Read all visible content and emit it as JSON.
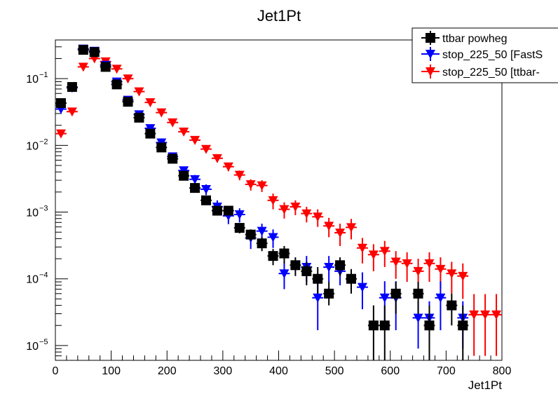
{
  "chart_data": {
    "type": "scatter",
    "title": "Jet1Pt",
    "xlabel": "Jet1Pt",
    "ylabel": "",
    "xlim": [
      0,
      800
    ],
    "ylim": [
      6e-06,
      0.38
    ],
    "yscale": "log",
    "grid": false,
    "legend_position": "top-right",
    "x_ticks": [
      0,
      100,
      200,
      300,
      400,
      500,
      600,
      700,
      800
    ],
    "x_tick_labels": [
      "0",
      "100",
      "200",
      "300",
      "400",
      "500",
      "600",
      "700",
      "800"
    ],
    "y_ticks": [
      1e-05,
      0.0001,
      0.001,
      0.01,
      0.1
    ],
    "y_tick_labels": [
      {
        "base": "10",
        "exp": "−5"
      },
      {
        "base": "10",
        "exp": "−4"
      },
      {
        "base": "10",
        "exp": "−3"
      },
      {
        "base": "10",
        "exp": "−2"
      },
      {
        "base": "10",
        "exp": "−1"
      }
    ],
    "series": [
      {
        "name": "ttbar powheg",
        "color": "#000000",
        "marker": "square",
        "points": [
          [
            10,
            0.043,
            0.002,
            0.002
          ],
          [
            30,
            0.075,
            0.003,
            0.003
          ],
          [
            50,
            0.27,
            0.005,
            0.005
          ],
          [
            70,
            0.25,
            0.005,
            0.005
          ],
          [
            90,
            0.15,
            0.004,
            0.004
          ],
          [
            110,
            0.082,
            0.003,
            0.003
          ],
          [
            130,
            0.045,
            0.002,
            0.002
          ],
          [
            150,
            0.026,
            0.0015,
            0.0015
          ],
          [
            170,
            0.015,
            0.001,
            0.001
          ],
          [
            190,
            0.0093,
            0.0007,
            0.0007
          ],
          [
            210,
            0.0063,
            0.0005,
            0.0005
          ],
          [
            230,
            0.0035,
            0.0004,
            0.0004
          ],
          [
            250,
            0.0023,
            0.0003,
            0.0003
          ],
          [
            270,
            0.0015,
            0.0002,
            0.0002
          ],
          [
            290,
            0.00105,
            0.00015,
            0.00015
          ],
          [
            310,
            0.00105,
            0.00015,
            0.00015
          ],
          [
            330,
            0.00058,
            0.0001,
            0.0001
          ],
          [
            350,
            0.00046,
            9e-05,
            9e-05
          ],
          [
            370,
            0.00034,
            8e-05,
            8e-05
          ],
          [
            390,
            0.00022,
            6e-05,
            6e-05
          ],
          [
            410,
            0.00024,
            7e-05,
            7e-05
          ],
          [
            430,
            0.00016,
            5e-05,
            5e-05
          ],
          [
            450,
            0.00013,
            5e-05,
            5e-05
          ],
          [
            470,
            0.0001,
            5e-05,
            4e-05
          ],
          [
            490,
            6e-05,
            3e-05,
            2e-05
          ],
          [
            510,
            0.00016,
            5e-05,
            5e-05
          ],
          [
            530,
            0.0001,
            4e-05,
            4e-05
          ],
          [
            570,
            2e-05,
            2e-05,
            1.4e-05
          ],
          [
            590,
            2e-05,
            2e-05,
            1.4e-05
          ],
          [
            610,
            6e-05,
            3e-05,
            3e-05
          ],
          [
            650,
            6e-05,
            3e-05,
            3e-05
          ],
          [
            670,
            2e-05,
            2e-05,
            1.4e-05
          ],
          [
            710,
            4e-05,
            2e-05,
            2e-05
          ],
          [
            730,
            2e-05,
            2e-05,
            1.4e-05
          ]
        ]
      },
      {
        "name": "stop_225_50 [FastS",
        "color": "#0000ff",
        "marker": "triangle-down",
        "points": [
          [
            10,
            0.035,
            0.002,
            0.002
          ],
          [
            30,
            0.073,
            0.003,
            0.003
          ],
          [
            50,
            0.28,
            0.006,
            0.006
          ],
          [
            70,
            0.26,
            0.006,
            0.006
          ],
          [
            90,
            0.16,
            0.005,
            0.005
          ],
          [
            110,
            0.09,
            0.004,
            0.004
          ],
          [
            130,
            0.048,
            0.003,
            0.003
          ],
          [
            150,
            0.029,
            0.002,
            0.002
          ],
          [
            170,
            0.018,
            0.0015,
            0.0015
          ],
          [
            190,
            0.011,
            0.001,
            0.001
          ],
          [
            210,
            0.0068,
            0.0008,
            0.0008
          ],
          [
            230,
            0.0042,
            0.0006,
            0.0006
          ],
          [
            250,
            0.0031,
            0.0005,
            0.0005
          ],
          [
            270,
            0.0022,
            0.0004,
            0.0004
          ],
          [
            290,
            0.0012,
            0.0003,
            0.0003
          ],
          [
            310,
            0.00088,
            0.00022,
            0.00022
          ],
          [
            330,
            0.00092,
            0.00022,
            0.00022
          ],
          [
            350,
            0.00041,
            0.00013,
            0.00013
          ],
          [
            370,
            0.00052,
            0.00015,
            0.00015
          ],
          [
            390,
            0.00042,
            0.00013,
            0.00013
          ],
          [
            410,
            0.00012,
            6e-05,
            5e-05
          ],
          [
            450,
            0.00015,
            7e-05,
            6e-05
          ],
          [
            470,
            5.2e-05,
            4e-05,
            3.5e-05
          ],
          [
            490,
            0.00015,
            7e-05,
            6e-05
          ],
          [
            510,
            0.00013,
            6e-05,
            5e-05
          ],
          [
            550,
            7.5e-05,
            5e-05,
            4e-05
          ],
          [
            590,
            5.2e-05,
            4e-05,
            3.5e-05
          ],
          [
            610,
            5.2e-05,
            4e-05,
            3.5e-05
          ],
          [
            650,
            2.6e-05,
            2e-05,
            1.7e-05
          ],
          [
            670,
            2.6e-05,
            2e-05,
            1.7e-05
          ],
          [
            690,
            5.2e-05,
            4e-05,
            3.5e-05
          ],
          [
            730,
            2.6e-05,
            2e-05,
            1.7e-05
          ]
        ]
      },
      {
        "name": "stop_225_50 [ttbar-",
        "color": "#ff0000",
        "marker": "triangle-down",
        "points": [
          [
            10,
            0.015,
            0.001,
            0.001
          ],
          [
            30,
            0.032,
            0.002,
            0.002
          ],
          [
            50,
            0.15,
            0.005,
            0.005
          ],
          [
            70,
            0.2,
            0.006,
            0.006
          ],
          [
            90,
            0.18,
            0.005,
            0.005
          ],
          [
            110,
            0.14,
            0.005,
            0.005
          ],
          [
            130,
            0.1,
            0.004,
            0.004
          ],
          [
            150,
            0.064,
            0.003,
            0.003
          ],
          [
            170,
            0.044,
            0.0025,
            0.0025
          ],
          [
            190,
            0.031,
            0.002,
            0.002
          ],
          [
            210,
            0.022,
            0.0017,
            0.0017
          ],
          [
            230,
            0.016,
            0.0014,
            0.0014
          ],
          [
            250,
            0.012,
            0.0012,
            0.0012
          ],
          [
            270,
            0.0088,
            0.001,
            0.001
          ],
          [
            290,
            0.0064,
            0.0008,
            0.0008
          ],
          [
            310,
            0.0048,
            0.0007,
            0.0007
          ],
          [
            330,
            0.0036,
            0.0006,
            0.0006
          ],
          [
            350,
            0.0026,
            0.0005,
            0.0005
          ],
          [
            370,
            0.0025,
            0.0005,
            0.0005
          ],
          [
            390,
            0.0015,
            0.0004,
            0.0004
          ],
          [
            410,
            0.0011,
            0.0003,
            0.0003
          ],
          [
            430,
            0.0012,
            0.0003,
            0.0003
          ],
          [
            450,
            0.00095,
            0.00025,
            0.00025
          ],
          [
            470,
            0.00085,
            0.00025,
            0.00025
          ],
          [
            490,
            0.00062,
            0.0002,
            0.0002
          ],
          [
            510,
            0.00049,
            0.00018,
            0.00018
          ],
          [
            530,
            0.00059,
            0.0002,
            0.0002
          ],
          [
            550,
            0.00029,
            0.00012,
            0.00012
          ],
          [
            570,
            0.00023,
            0.0001,
            0.0001
          ],
          [
            590,
            0.00026,
            0.00011,
            0.00011
          ],
          [
            610,
            0.00018,
            8e-05,
            8e-05
          ],
          [
            630,
            0.00017,
            8e-05,
            8e-05
          ],
          [
            650,
            0.00013,
            7e-05,
            7e-05
          ],
          [
            670,
            0.00017,
            8e-05,
            8e-05
          ],
          [
            690,
            0.00014,
            7e-05,
            7e-05
          ],
          [
            710,
            0.00012,
            6e-05,
            6e-05
          ],
          [
            730,
            0.00011,
            6e-05,
            6e-05
          ],
          [
            750,
            2.9e-05,
            3e-05,
            2.2e-05
          ],
          [
            770,
            2.9e-05,
            3e-05,
            2.2e-05
          ],
          [
            790,
            2.9e-05,
            3e-05,
            2.2e-05
          ]
        ]
      }
    ]
  }
}
